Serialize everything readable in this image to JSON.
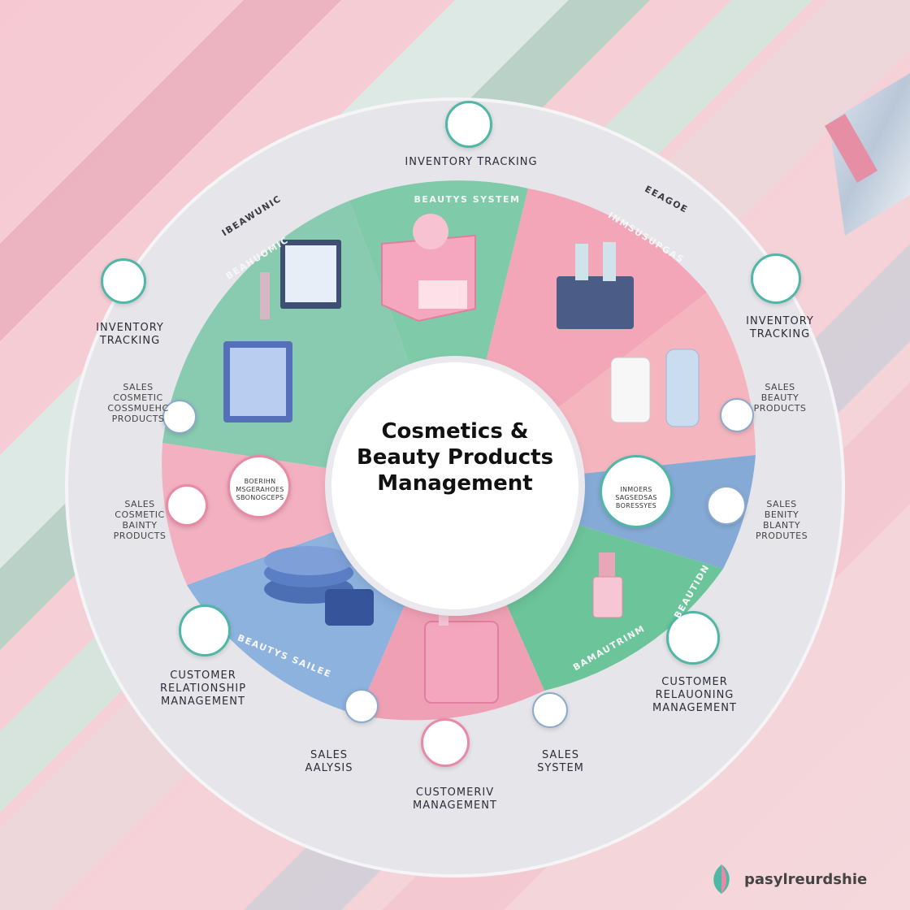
{
  "title": "Cosmetics &\nBeauty Products\nManagement",
  "brand": {
    "name": "pasylreurdshie",
    "icon": "leaf-logo-icon"
  },
  "colors": {
    "mint": "#6cc4a4",
    "pink": "#f2a3b6",
    "blue": "#7ea6d6",
    "ring": "#dcdce2"
  },
  "outer_labels": [
    {
      "key": "top",
      "text": "INVENTORY TRACKING"
    },
    {
      "key": "left-top",
      "text": "INVENTORY\nTRACKING"
    },
    {
      "key": "right-top",
      "text": "INVENTORY\nTRACKING"
    },
    {
      "key": "left-mid",
      "text": "SALES\nCOSMETIC\nCOSSMUEHC\nPRODUCTS"
    },
    {
      "key": "right-mid",
      "text": "SALES\nBEAUTY\nPRODUCTS"
    },
    {
      "key": "left-low",
      "text": "SALES\nCOSMETIC\nBAINTY\nPRODUCTS"
    },
    {
      "key": "right-low",
      "text": "SALES\nBENITY\nBLANTY\nPRODUTES"
    },
    {
      "key": "left-bottom",
      "text": "CUSTOMER\nRELATIONSHIP\nMANAGEMENT"
    },
    {
      "key": "right-bottom",
      "text": "CUSTOMER\nRELAUONING\nMANAGEMENT"
    },
    {
      "key": "bottom-left",
      "text": "SALES\nAALYSIS"
    },
    {
      "key": "bottom-center",
      "text": "CUSTOMERIV\nMANAGEMENT"
    },
    {
      "key": "bottom-right",
      "text": "SALES\nSYSTEM"
    }
  ],
  "segment_labels": [
    {
      "key": "top",
      "text": "BEAUTYS SYSTEM"
    },
    {
      "key": "upper-left-outer",
      "text": "IBEAWUNIC"
    },
    {
      "key": "upper-left",
      "text": "BEAHUOMIC"
    },
    {
      "key": "upper-right-outer",
      "text": "EEAGOE"
    },
    {
      "key": "upper-right",
      "text": "INMSUSUPGAS"
    },
    {
      "key": "lower-left",
      "text": "BEAUTYS SAILEE"
    },
    {
      "key": "lower-right",
      "text": "BEAUTIDN"
    },
    {
      "key": "lower-right-2",
      "text": "BAMAUTRINM"
    },
    {
      "key": "inner-left",
      "text": "BOERIHN\nMSGERAHOES\nSBONOGCEPS"
    },
    {
      "key": "inner-right",
      "text": "INMOERS\nSAGSEDSAS\nBORESSYES"
    }
  ]
}
